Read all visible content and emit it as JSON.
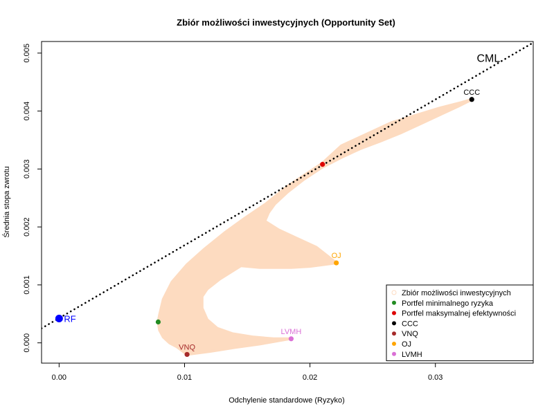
{
  "chart_data": {
    "type": "scatter",
    "title": "Zbiór możliwości inwestycyjnych (Opportunity Set)",
    "xlabel": "Odchylenie standardowe (Ryzyko)",
    "ylabel": "Średnia stopa zwrotu",
    "xlim": [
      -0.0014,
      0.0378
    ],
    "ylim": [
      -0.00035,
      0.0052
    ],
    "x_ticks": [
      0.0,
      0.01,
      0.02,
      0.03
    ],
    "x_tick_labels": [
      "0.00",
      "0.01",
      "0.02",
      "0.03"
    ],
    "y_ticks": [
      0.0,
      0.001,
      0.002,
      0.003,
      0.004,
      0.005
    ],
    "y_tick_labels": [
      "0.000",
      "0.001",
      "0.002",
      "0.003",
      "0.004",
      "0.005"
    ],
    "grid": false,
    "legend_position": "bottom-right",
    "opportunity_set": {
      "color": "#FDDBC0",
      "outer_boundary": [
        [
          0.0329,
          0.0042
        ],
        [
          0.0321,
          0.00415
        ],
        [
          0.0303,
          0.00405
        ],
        [
          0.0285,
          0.00393
        ],
        [
          0.0265,
          0.0038
        ],
        [
          0.0245,
          0.0036
        ],
        [
          0.0225,
          0.0034
        ],
        [
          0.021,
          0.0031
        ],
        [
          0.0196,
          0.0029
        ],
        [
          0.0182,
          0.0027
        ],
        [
          0.0165,
          0.0024
        ],
        [
          0.0148,
          0.00215
        ],
        [
          0.0132,
          0.0019
        ],
        [
          0.0116,
          0.00162
        ],
        [
          0.0102,
          0.00135
        ],
        [
          0.009,
          0.00105
        ],
        [
          0.0083,
          0.00075
        ],
        [
          0.008,
          0.00048
        ],
        [
          0.0079,
          0.00036
        ],
        [
          0.008,
          0.00022
        ],
        [
          0.0083,
          0.0001
        ],
        [
          0.0088,
          0.0
        ],
        [
          0.0094,
          -7e-05
        ],
        [
          0.0102,
          -0.0002
        ]
      ],
      "inner_boundary": [
        [
          0.0329,
          0.0042
        ],
        [
          0.0318,
          0.00408
        ],
        [
          0.0305,
          0.00395
        ],
        [
          0.0288,
          0.00378
        ],
        [
          0.0272,
          0.00362
        ],
        [
          0.0256,
          0.00348
        ],
        [
          0.024,
          0.00335
        ],
        [
          0.0225,
          0.0032
        ],
        [
          0.0209,
          0.00302
        ],
        [
          0.0195,
          0.00282
        ],
        [
          0.0182,
          0.0026
        ],
        [
          0.0172,
          0.0024
        ],
        [
          0.0167,
          0.00225
        ],
        [
          0.0164,
          0.0021
        ],
        [
          0.0175,
          0.00195
        ],
        [
          0.019,
          0.0018
        ],
        [
          0.0205,
          0.00165
        ],
        [
          0.0221,
          0.00138
        ],
        [
          0.02,
          0.00132
        ],
        [
          0.0185,
          0.0013
        ],
        [
          0.017,
          0.0013
        ],
        [
          0.016,
          0.0013
        ],
        [
          0.0145,
          0.00133
        ],
        [
          0.0128,
          0.0011
        ],
        [
          0.0118,
          0.00093
        ],
        [
          0.0114,
          0.0008
        ],
        [
          0.0114,
          0.0006
        ],
        [
          0.0118,
          0.0004
        ],
        [
          0.0126,
          0.00025
        ],
        [
          0.0138,
          0.00016
        ],
        [
          0.0155,
          0.0001
        ],
        [
          0.0171,
          7e-05
        ],
        [
          0.0184,
          7e-05
        ],
        [
          0.0176,
          4e-05
        ],
        [
          0.016,
          -2e-05
        ],
        [
          0.014,
          -8e-05
        ],
        [
          0.012,
          -0.00015
        ],
        [
          0.0102,
          -0.0002
        ]
      ]
    },
    "cml": {
      "label": "CML",
      "x": [
        -0.0014,
        0.0378
      ],
      "y": [
        0.00025,
        0.00518
      ],
      "label_at": [
        0.0333,
        0.00485
      ],
      "color": "#000000"
    },
    "points": [
      {
        "name": "RF",
        "label": "RF",
        "x": 0.0,
        "y": 0.00042,
        "color": "#0000FF",
        "size": "large",
        "label_side": "right"
      },
      {
        "name": "Portfel minimalnego ryzyka",
        "label": "",
        "x": 0.0079,
        "y": 0.00036,
        "color": "#228B22",
        "size": "normal",
        "label_side": "none"
      },
      {
        "name": "Portfel maksymalnej efektywności",
        "label": "",
        "x": 0.021,
        "y": 0.00308,
        "color": "#DD0000",
        "size": "normal",
        "label_side": "none"
      },
      {
        "name": "CCC",
        "label": "CCC",
        "x": 0.0329,
        "y": 0.0042,
        "color": "#000000",
        "size": "normal",
        "label_side": "top"
      },
      {
        "name": "VNQ",
        "label": "VNQ",
        "x": 0.0102,
        "y": -0.0002,
        "color": "#A52A2A",
        "size": "normal",
        "label_side": "top"
      },
      {
        "name": "OJ",
        "label": "OJ",
        "x": 0.0221,
        "y": 0.00138,
        "color": "#FFA500",
        "size": "normal",
        "label_side": "top"
      },
      {
        "name": "LVMH",
        "label": "LVMH",
        "x": 0.0185,
        "y": 7e-05,
        "color": "#DA70D6",
        "size": "normal",
        "label_side": "top"
      }
    ],
    "legend": [
      {
        "label": "Zbiór możliwości inwestycyjnych",
        "color": "#FDDBC0",
        "style": "open-circle"
      },
      {
        "label": "Portfel minimalnego ryzyka",
        "color": "#228B22",
        "style": "filled-circle"
      },
      {
        "label": "Portfel maksymalnej efektywności",
        "color": "#DD0000",
        "style": "filled-circle"
      },
      {
        "label": "CCC",
        "color": "#000000",
        "style": "filled-circle"
      },
      {
        "label": "VNQ",
        "color": "#A52A2A",
        "style": "filled-circle"
      },
      {
        "label": "OJ",
        "color": "#FFA500",
        "style": "filled-circle"
      },
      {
        "label": "LVMH",
        "color": "#DA70D6",
        "style": "filled-circle"
      }
    ]
  }
}
